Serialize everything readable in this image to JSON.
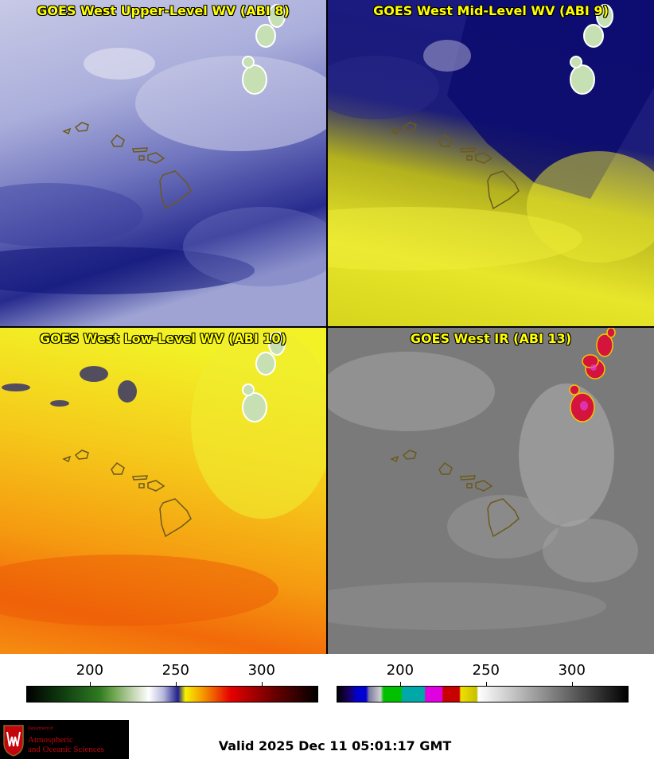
{
  "panels": [
    {
      "title": "GOES West Upper-Level WV (ABI 8)"
    },
    {
      "title": "GOES West Mid-Level WV (ABI 9)"
    },
    {
      "title": "GOES West Low-Level WV (ABI 10)"
    },
    {
      "title": "GOES West IR (ABI 13)"
    }
  ],
  "colorbars": {
    "left": {
      "ticks": [
        "200",
        "250",
        "300"
      ],
      "tick_values": [
        200,
        250,
        300
      ],
      "range": [
        163,
        333
      ]
    },
    "right": {
      "ticks": [
        "200",
        "250",
        "300"
      ],
      "tick_values": [
        200,
        250,
        300
      ],
      "range": [
        163,
        333
      ]
    }
  },
  "logo": {
    "dept_line1": "Department of",
    "line1": "Atmospheric",
    "line2": "and Oceanic Sciences",
    "color": "#c5050c"
  },
  "footer": {
    "valid": "Valid 2025 Dec 11 05:01:17 GMT"
  }
}
